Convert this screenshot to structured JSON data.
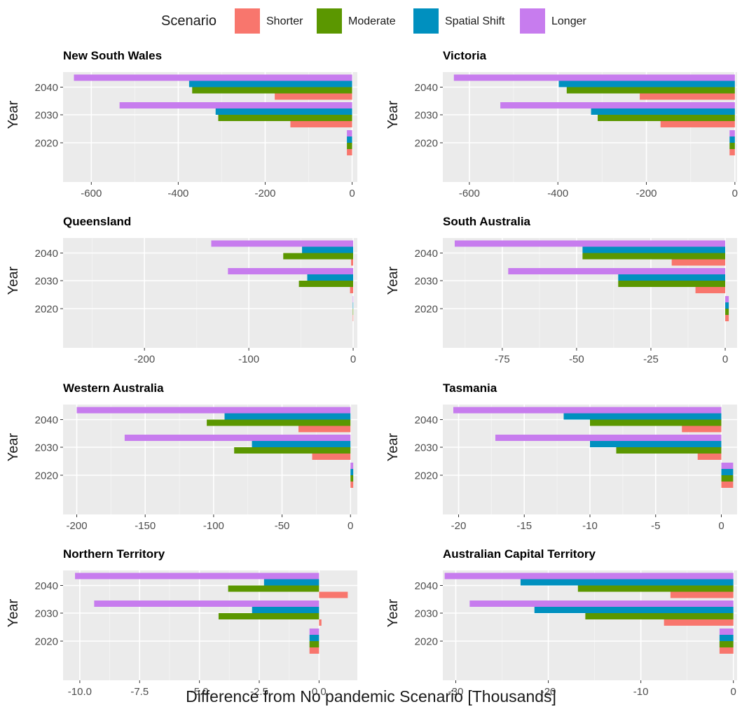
{
  "legend": {
    "title": "Scenario",
    "items": [
      {
        "name": "Shorter",
        "color": "#F8766D"
      },
      {
        "name": "Moderate",
        "color": "#5B9700"
      },
      {
        "name": "Spatial Shift",
        "color": "#0090BF"
      },
      {
        "name": "Longer",
        "color": "#C77CEE"
      }
    ]
  },
  "x_axis_title": "Difference from No pandemic Scenario [Thousands]",
  "chart_data": [
    {
      "type": "bar",
      "orientation": "horizontal",
      "title": "New South Wales",
      "ylabel": "Year",
      "xlabel": "Difference from No pandemic Scenario [Thousands]",
      "categories": [
        "2020",
        "2030",
        "2040"
      ],
      "xlim": [
        -665,
        12
      ],
      "xticks": [
        -600,
        -400,
        -200,
        0
      ],
      "xticklabels": [
        "-600",
        "-400",
        "-200",
        "0"
      ],
      "series": [
        {
          "name": "Shorter",
          "values": [
            -12,
            -142,
            -178
          ]
        },
        {
          "name": "Moderate",
          "values": [
            -12,
            -308,
            -368
          ]
        },
        {
          "name": "Spatial Shift",
          "values": [
            -12,
            -314,
            -375
          ]
        },
        {
          "name": "Longer",
          "values": [
            -12,
            -535,
            -640
          ]
        }
      ]
    },
    {
      "type": "bar",
      "orientation": "horizontal",
      "title": "Victoria",
      "ylabel": "Year",
      "xlabel": "Difference from No pandemic Scenario [Thousands]",
      "categories": [
        "2020",
        "2030",
        "2040"
      ],
      "xlim": [
        -660,
        5
      ],
      "xticks": [
        -600,
        -400,
        -200,
        0
      ],
      "xticklabels": [
        "-600",
        "-400",
        "-200",
        "0"
      ],
      "series": [
        {
          "name": "Shorter",
          "values": [
            -12,
            -168,
            -215
          ]
        },
        {
          "name": "Moderate",
          "values": [
            -12,
            -310,
            -380
          ]
        },
        {
          "name": "Spatial Shift",
          "values": [
            -12,
            -325,
            -398
          ]
        },
        {
          "name": "Longer",
          "values": [
            -12,
            -530,
            -635
          ]
        }
      ]
    },
    {
      "type": "bar",
      "orientation": "horizontal",
      "title": "Queensland",
      "ylabel": "Year",
      "xlabel": "Difference from No pandemic Scenario [Thousands]",
      "categories": [
        "2020",
        "2030",
        "2040"
      ],
      "xlim": [
        -278,
        4
      ],
      "xticks": [
        -200,
        -100,
        0
      ],
      "xticklabels": [
        "-200",
        "-100",
        "0"
      ],
      "series": [
        {
          "name": "Shorter",
          "values": [
            -0.3,
            -3,
            -2
          ]
        },
        {
          "name": "Moderate",
          "values": [
            -0.3,
            -52,
            -67
          ]
        },
        {
          "name": "Spatial Shift",
          "values": [
            -0.3,
            -44,
            -49
          ]
        },
        {
          "name": "Longer",
          "values": [
            -0.3,
            -120,
            -136
          ]
        }
      ]
    },
    {
      "type": "bar",
      "orientation": "horizontal",
      "title": "South Australia",
      "ylabel": "Year",
      "xlabel": "Difference from No pandemic Scenario [Thousands]",
      "categories": [
        "2020",
        "2030",
        "2040"
      ],
      "xlim": [
        -95,
        4
      ],
      "xticks": [
        -75,
        -50,
        -25,
        0
      ],
      "xticklabels": [
        "-75",
        "-50",
        "-25",
        "0"
      ],
      "series": [
        {
          "name": "Shorter",
          "values": [
            1.2,
            -10,
            -18
          ]
        },
        {
          "name": "Moderate",
          "values": [
            1.2,
            -36,
            -48
          ]
        },
        {
          "name": "Spatial Shift",
          "values": [
            1.2,
            -36,
            -48
          ]
        },
        {
          "name": "Longer",
          "values": [
            1.2,
            -73,
            -91
          ]
        }
      ]
    },
    {
      "type": "bar",
      "orientation": "horizontal",
      "title": "Western Australia",
      "ylabel": "Year",
      "xlabel": "Difference from No pandemic Scenario [Thousands]",
      "categories": [
        "2020",
        "2030",
        "2040"
      ],
      "xlim": [
        -210,
        5
      ],
      "xticks": [
        -200,
        -150,
        -100,
        -50,
        0
      ],
      "xticklabels": [
        "-200",
        "-150",
        "-100",
        "-50",
        "0"
      ],
      "series": [
        {
          "name": "Shorter",
          "values": [
            2,
            -28,
            -38
          ]
        },
        {
          "name": "Moderate",
          "values": [
            2,
            -85,
            -105
          ]
        },
        {
          "name": "Spatial Shift",
          "values": [
            2,
            -72,
            -92
          ]
        },
        {
          "name": "Longer",
          "values": [
            2,
            -165,
            -200
          ]
        }
      ]
    },
    {
      "type": "bar",
      "orientation": "horizontal",
      "title": "Tasmania",
      "ylabel": "Year",
      "xlabel": "Difference from No pandemic Scenario [Thousands]",
      "categories": [
        "2020",
        "2030",
        "2040"
      ],
      "xlim": [
        -21.2,
        1.2
      ],
      "xticks": [
        -20,
        -15,
        -10,
        -5,
        0
      ],
      "xticklabels": [
        "-20",
        "-15",
        "-10",
        "-5",
        "0"
      ],
      "series": [
        {
          "name": "Shorter",
          "values": [
            0.9,
            -1.8,
            -3
          ]
        },
        {
          "name": "Moderate",
          "values": [
            0.9,
            -8,
            -10
          ]
        },
        {
          "name": "Spatial Shift",
          "values": [
            0.9,
            -10,
            -12
          ]
        },
        {
          "name": "Longer",
          "values": [
            0.9,
            -17.2,
            -20.4
          ]
        }
      ]
    },
    {
      "type": "bar",
      "orientation": "horizontal",
      "title": "Northern Territory",
      "ylabel": "Year",
      "xlabel": "Difference from No pandemic Scenario [Thousands]",
      "categories": [
        "2020",
        "2030",
        "2040"
      ],
      "xlim": [
        -10.7,
        1.6
      ],
      "xticks": [
        -10,
        -7.5,
        -5,
        -2.5,
        0
      ],
      "xticklabels": [
        "-10.0",
        "-7.5",
        "-5.0",
        "-2.5",
        "0.0"
      ],
      "series": [
        {
          "name": "Shorter",
          "values": [
            -0.4,
            0.1,
            1.2
          ]
        },
        {
          "name": "Moderate",
          "values": [
            -0.4,
            -4.2,
            -3.8
          ]
        },
        {
          "name": "Spatial Shift",
          "values": [
            -0.4,
            -2.8,
            -2.3
          ]
        },
        {
          "name": "Longer",
          "values": [
            -0.4,
            -9.4,
            -10.2
          ]
        }
      ]
    },
    {
      "type": "bar",
      "orientation": "horizontal",
      "title": "Australian Capital Territory",
      "ylabel": "Year",
      "xlabel": "Difference from No pandemic Scenario [Thousands]",
      "categories": [
        "2020",
        "2030",
        "2040"
      ],
      "xlim": [
        -31.4,
        0.4
      ],
      "xticks": [
        -30,
        -20,
        -10,
        0
      ],
      "xticklabels": [
        "-30",
        "-20",
        "-10",
        "0"
      ],
      "series": [
        {
          "name": "Shorter",
          "values": [
            -1.5,
            -7.5,
            -6.8
          ]
        },
        {
          "name": "Moderate",
          "values": [
            -1.5,
            -16,
            -16.8
          ]
        },
        {
          "name": "Spatial Shift",
          "values": [
            -1.5,
            -21.5,
            -23
          ]
        },
        {
          "name": "Longer",
          "values": [
            -1.5,
            -28.5,
            -31.2
          ]
        }
      ]
    }
  ]
}
